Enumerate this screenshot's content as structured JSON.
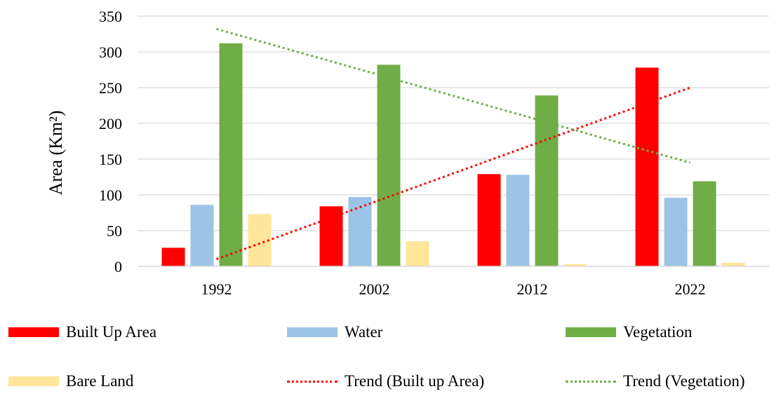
{
  "chart_data": {
    "type": "bar",
    "title": "",
    "xlabel": "",
    "ylabel": "Area (Km²)",
    "ylim": [
      0,
      350
    ],
    "yticks": [
      0,
      50,
      100,
      150,
      200,
      250,
      300,
      350
    ],
    "grid": true,
    "legend_position": "bottom",
    "categories": [
      "1992",
      "2002",
      "2012",
      "2022"
    ],
    "series": [
      {
        "name": "Built Up Area",
        "color": "#ff0000",
        "values": [
          26,
          84,
          129,
          278
        ]
      },
      {
        "name": "Water",
        "color": "#9dc3e6",
        "values": [
          86,
          97,
          128,
          96
        ]
      },
      {
        "name": "Vegetation",
        "color": "#70ad47",
        "values": [
          312,
          282,
          239,
          119
        ]
      },
      {
        "name": "Bare Land",
        "color": "#ffe699",
        "values": [
          73,
          35,
          3,
          5
        ]
      }
    ],
    "trendlines": [
      {
        "name": "Trend (Built up Area)",
        "color": "#ff0000",
        "style": "dotted",
        "start": {
          "x": "1992",
          "y": 10
        },
        "end": {
          "x": "2022",
          "y": 250
        }
      },
      {
        "name": "Trend (Vegetation)",
        "color": "#70ad47",
        "style": "dotted",
        "start": {
          "x": "1992",
          "y": 332
        },
        "end": {
          "x": "2022",
          "y": 145
        }
      }
    ]
  },
  "legend": [
    {
      "label": "Built Up Area",
      "color": "#ff0000",
      "kind": "bar"
    },
    {
      "label": "Water",
      "color": "#9dc3e6",
      "kind": "bar"
    },
    {
      "label": "Vegetation",
      "color": "#70ad47",
      "kind": "bar"
    },
    {
      "label": "Bare Land",
      "color": "#ffe699",
      "kind": "bar"
    },
    {
      "label": "Trend (Built up Area)",
      "color": "#ff0000",
      "kind": "line"
    },
    {
      "label": "Trend (Vegetation)",
      "color": "#70ad47",
      "kind": "line"
    }
  ]
}
